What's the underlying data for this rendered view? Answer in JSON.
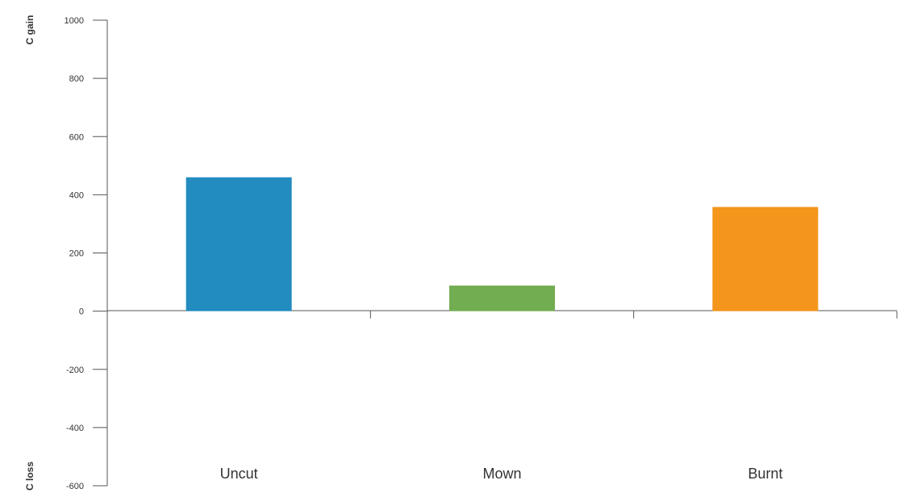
{
  "chart_data": {
    "type": "bar",
    "categories": [
      "Uncut",
      "Mown",
      "Burnt"
    ],
    "values": [
      460,
      88,
      358
    ],
    "colors": [
      "#228bc0",
      "#72ad51",
      "#f4951c"
    ],
    "y_ticks": [
      1000,
      800,
      600,
      400,
      200,
      0,
      -200,
      -400,
      -600
    ],
    "ylim": [
      -600,
      1000
    ],
    "y_top_label": "C gain",
    "y_bottom_label": "C loss",
    "grid": false,
    "legend": "none"
  }
}
